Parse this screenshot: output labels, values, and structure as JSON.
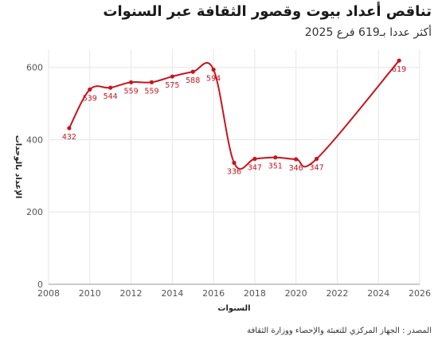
{
  "title": "تناقص أعداد بيوت وقصور الثقافة عبر السنوات",
  "subtitle": "أكثر عددا بـ619 فرع 2025",
  "source": "المصدر : الجهاز المركزي للتعبئة والإحصاء ووزارة الثقافة",
  "colors": {
    "line": "#c9141e",
    "grid": "#e6e6e6",
    "axis": "#999999"
  },
  "chart_data": {
    "type": "line",
    "xlabel": "السنوات",
    "ylabel": "الإعداد بالوحدات",
    "xlim": [
      2008,
      2026
    ],
    "ylim": [
      0,
      650
    ],
    "xticks": [
      2008,
      2010,
      2012,
      2014,
      2016,
      2018,
      2020,
      2022,
      2024,
      2026
    ],
    "yticks": [
      0,
      200,
      400,
      600
    ],
    "grid": true,
    "series": [
      {
        "x": [
          2009,
          2010,
          2011,
          2012,
          2013,
          2014,
          2015,
          2016,
          2017,
          2018,
          2019,
          2020,
          2021,
          2025
        ],
        "values": [
          432,
          539,
          544,
          559,
          559,
          575,
          588,
          594,
          336,
          347,
          351,
          346,
          347,
          619
        ]
      }
    ]
  }
}
